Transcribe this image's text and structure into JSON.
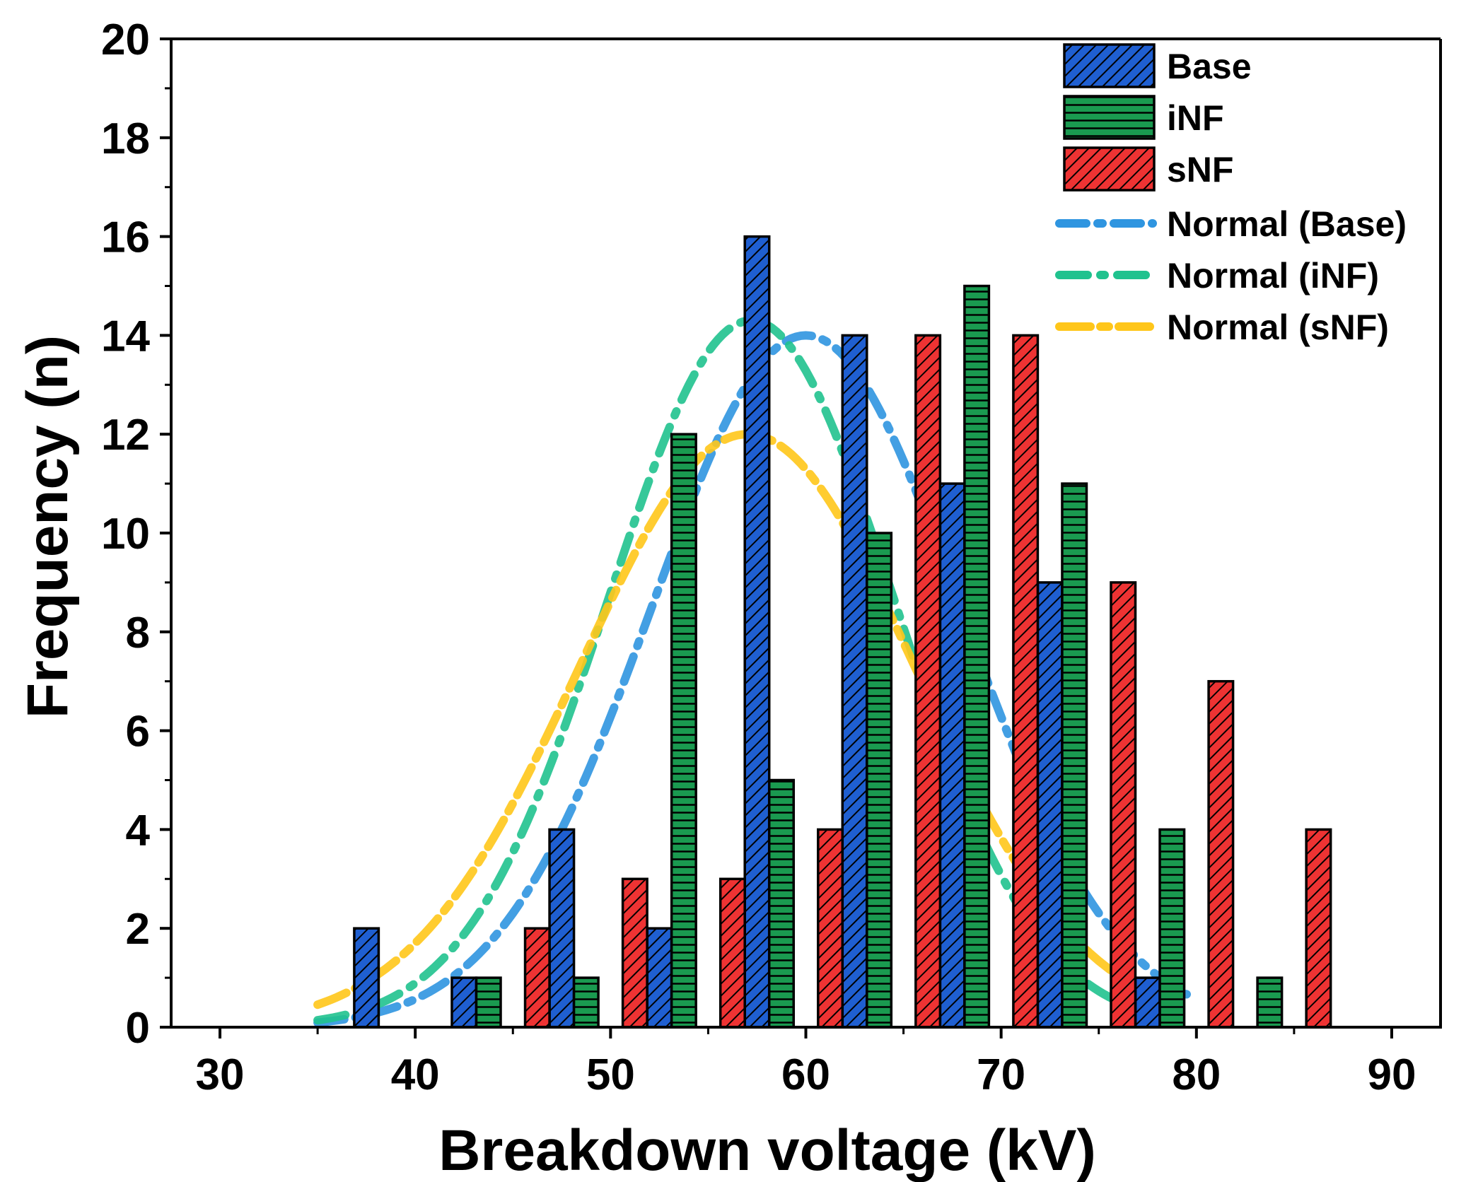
{
  "chart_data": {
    "type": "bar",
    "xlabel": "Breakdown voltage (kV)",
    "ylabel": "Frequency (n)",
    "xlim": [
      27.5,
      92.5
    ],
    "ylim": [
      0,
      20
    ],
    "xticks": [
      "30",
      "40",
      "50",
      "60",
      "70",
      "80",
      "90"
    ],
    "yticks": [
      "0",
      "2",
      "4",
      "6",
      "8",
      "10",
      "12",
      "14",
      "16",
      "18",
      "20"
    ],
    "bar_width_kv": 1.25,
    "series": [
      {
        "name": "Base",
        "color": "#1f5fd1",
        "pattern": "diagonal-hatch",
        "bars": [
          {
            "x": 37.5,
            "value": 2
          },
          {
            "x": 42.5,
            "value": 1
          },
          {
            "x": 47.5,
            "value": 4
          },
          {
            "x": 52.5,
            "value": 2
          },
          {
            "x": 57.5,
            "value": 16
          },
          {
            "x": 62.5,
            "value": 14
          },
          {
            "x": 67.5,
            "value": 11
          },
          {
            "x": 72.5,
            "value": 9
          },
          {
            "x": 77.5,
            "value": 1
          }
        ]
      },
      {
        "name": "iNF",
        "color": "#1a9a50",
        "pattern": "horizontal-lines",
        "bars": [
          {
            "x": 43.75,
            "value": 1
          },
          {
            "x": 48.75,
            "value": 1
          },
          {
            "x": 53.75,
            "value": 12
          },
          {
            "x": 58.75,
            "value": 5
          },
          {
            "x": 63.75,
            "value": 10
          },
          {
            "x": 68.75,
            "value": 15
          },
          {
            "x": 73.75,
            "value": 11
          },
          {
            "x": 78.75,
            "value": 4
          },
          {
            "x": 83.75,
            "value": 1
          }
        ]
      },
      {
        "name": "sNF",
        "color": "#ee3333",
        "pattern": "diagonal-hatch",
        "bars": [
          {
            "x": 46.25,
            "value": 2
          },
          {
            "x": 51.25,
            "value": 3
          },
          {
            "x": 56.25,
            "value": 3
          },
          {
            "x": 61.25,
            "value": 4
          },
          {
            "x": 66.25,
            "value": 14
          },
          {
            "x": 71.25,
            "value": 14
          },
          {
            "x": 76.25,
            "value": 9
          },
          {
            "x": 81.25,
            "value": 7
          },
          {
            "x": 86.25,
            "value": 4
          }
        ]
      }
    ],
    "curves": [
      {
        "name": "Normal (Base)",
        "color": "#2f95e0",
        "mean": 60,
        "sd": 7.9,
        "amplitude": 14,
        "x_range": [
          35,
          79.5
        ]
      },
      {
        "name": "Normal (iNF)",
        "color": "#20c28e",
        "mean": 57.2,
        "sd": 7.3,
        "amplitude": 14.3,
        "x_range": [
          35,
          78
        ]
      },
      {
        "name": "Normal (sNF)",
        "color": "#ffc61a",
        "mean": 57,
        "sd": 8.6,
        "amplitude": 12,
        "x_range": [
          35,
          78
        ]
      }
    ],
    "legend_position": "top-right",
    "grid": false
  }
}
